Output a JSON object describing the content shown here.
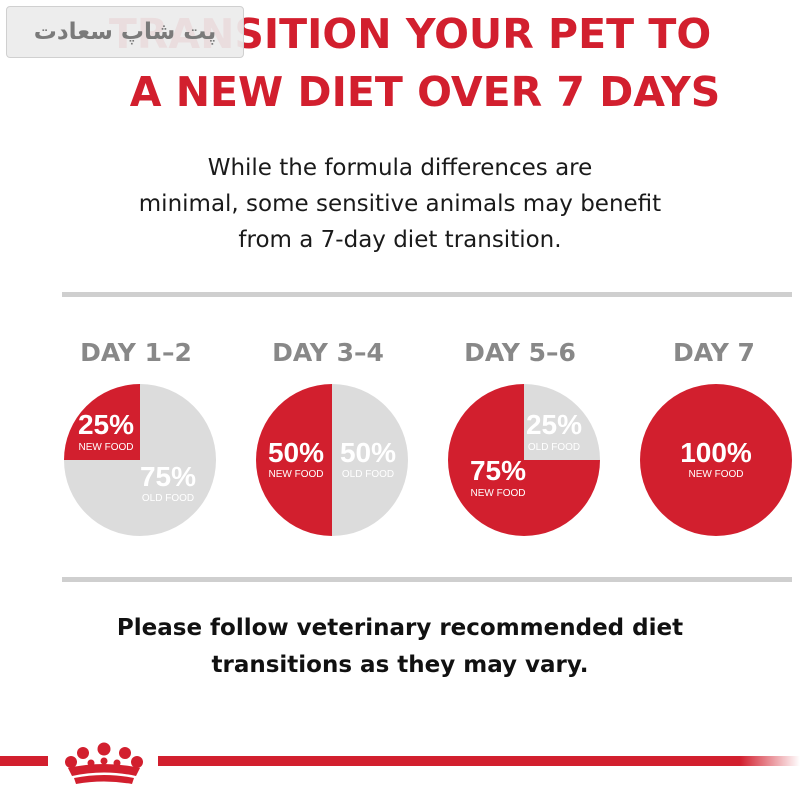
{
  "watermark": {
    "text": "پت شاپ سعادت"
  },
  "title": {
    "line1": "TRANSITION YOUR PET TO",
    "line2": "A NEW DIET OVER 7 DAYS"
  },
  "intro": {
    "line1": "While the formula differences are",
    "line2": "minimal, some sensitive animals may benefit",
    "line3": "from a 7-day diet transition."
  },
  "stages": [
    {
      "day": "DAY 1–2",
      "new_pct": 25,
      "new_text": "25%",
      "new_label": "NEW FOOD",
      "old_text": "75%",
      "old_label": "OLD FOOD"
    },
    {
      "day": "DAY 3–4",
      "new_pct": 50,
      "new_text": "50%",
      "new_label": "NEW FOOD",
      "old_text": "50%",
      "old_label": "OLD FOOD"
    },
    {
      "day": "DAY 5–6",
      "new_pct": 75,
      "new_text": "75%",
      "new_label": "NEW FOOD",
      "old_text": "25%",
      "old_label": "OLD FOOD"
    },
    {
      "day": "DAY 7",
      "new_pct": 100,
      "new_text": "100%",
      "new_label": "NEW FOOD",
      "old_text": "",
      "old_label": ""
    }
  ],
  "outro": {
    "line1": "Please follow veterinary recommended diet",
    "line2": "transitions as they may vary."
  },
  "colors": {
    "red": "#d21f2e",
    "grey": "#dcdcdc",
    "rule": "#cfcfcf"
  },
  "logo": {
    "icon": "crown-icon"
  }
}
